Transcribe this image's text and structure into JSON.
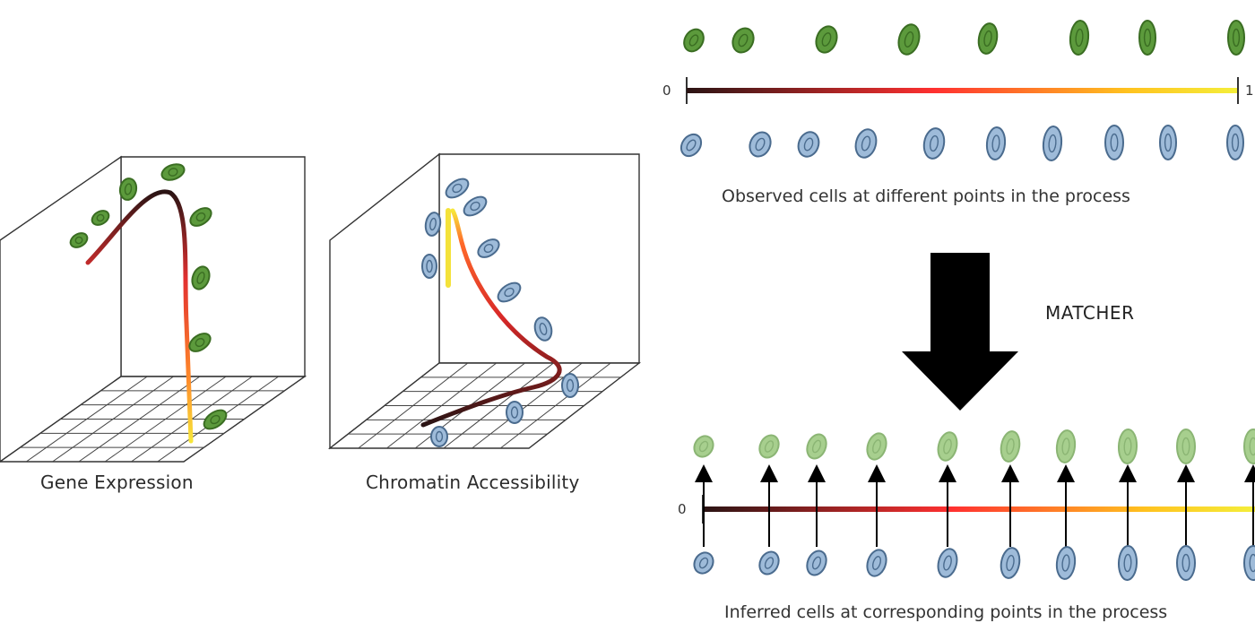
{
  "panels": {
    "gene_expression": {
      "title": "Gene Expression",
      "cell_color": "#5c9a3c"
    },
    "chromatin_accessibility": {
      "title": "Chromatin Accessibility",
      "cell_color": "#8aa8c8"
    }
  },
  "pseudotime": {
    "start_label": "0",
    "end_label": "1",
    "gradient": [
      "#2a1414",
      "#ff3030",
      "#ffd21f",
      "#f4ee3a"
    ]
  },
  "observed": {
    "caption": "Observed cells at different points in the process"
  },
  "matcher": {
    "label": "MATCHER"
  },
  "inferred": {
    "caption": "Inferred cells at corresponding points in the process",
    "faded_cell_color": "#a7cf8e"
  },
  "colors": {
    "green_cell_fill": "#5c9a3c",
    "green_cell_stroke": "#3a6d22",
    "blue_cell_fill": "#9ebbd9",
    "blue_cell_stroke": "#4a6b8e",
    "arrow": "#000000"
  }
}
